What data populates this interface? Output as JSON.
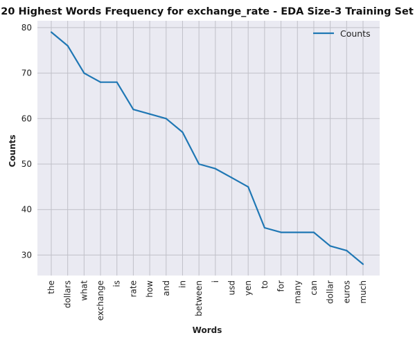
{
  "chart_data": {
    "type": "line",
    "title": "20 Highest Words Frequency for exchange_rate - EDA Size-3 Training Set",
    "xlabel": "Words",
    "ylabel": "Counts",
    "categories": [
      "the",
      "dollars",
      "what",
      "exchange",
      "is",
      "rate",
      "how",
      "and",
      "in",
      "between",
      "i",
      "usd",
      "yen",
      "to",
      "for",
      "many",
      "can",
      "dollar",
      "euros",
      "much"
    ],
    "series": [
      {
        "name": "Counts",
        "values": [
          79,
          76,
          70,
          68,
          68,
          62,
          61,
          60,
          57,
          50,
          49,
          47,
          45,
          36,
          35,
          35,
          35,
          32,
          31,
          28
        ],
        "color": "#1f77b4"
      }
    ],
    "yticks": [
      30,
      40,
      50,
      60,
      70,
      80
    ],
    "ylim": [
      25.5,
      81.5
    ],
    "grid": true,
    "legend_position": "top-right",
    "plot_background": "#eaeaf2",
    "grid_color": "#c0c0c8"
  }
}
